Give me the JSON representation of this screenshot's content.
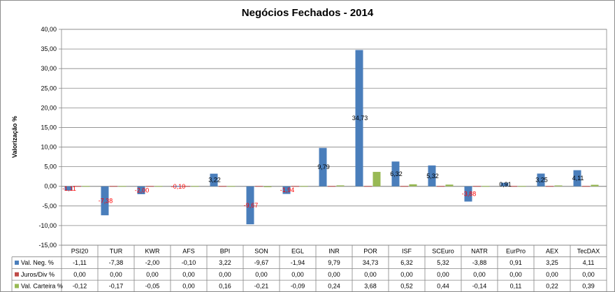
{
  "chart_data": {
    "type": "bar",
    "title": "Negócios Fechados - 2014",
    "ylabel": "Valorização %",
    "xlabel": "",
    "ylim": [
      -15,
      40
    ],
    "yticks": [
      "40,00",
      "35,00",
      "30,00",
      "25,00",
      "20,00",
      "15,00",
      "10,00",
      "5,00",
      "0,00",
      "-5,00",
      "-10,00",
      "-15,00"
    ],
    "ytick_values": [
      40,
      35,
      30,
      25,
      20,
      15,
      10,
      5,
      0,
      -5,
      -10,
      -15
    ],
    "grid": true,
    "legend_placement": "table-left",
    "categories": [
      "PSI20",
      "TUR",
      "KWR",
      "AFS",
      "BPI",
      "SON",
      "EGL",
      "INR",
      "POR",
      "ISF",
      "SCEuro",
      "NATR",
      "EurPro",
      "AEX",
      "TecDAX"
    ],
    "series": [
      {
        "name": "Val. Neg. %",
        "color": "#4a7ebb",
        "values": [
          -1.11,
          -7.38,
          -2.0,
          -0.1,
          3.22,
          -9.67,
          -1.94,
          9.79,
          34.73,
          6.32,
          5.32,
          -3.88,
          0.91,
          3.25,
          4.11
        ],
        "display": [
          "-1,11",
          "-7,38",
          "-2,00",
          "-0,10",
          "3,22",
          "-9,67",
          "-1,94",
          "9,79",
          "34,73",
          "6,32",
          "5,32",
          "-3,88",
          "0,91",
          "3,25",
          "4,11"
        ]
      },
      {
        "name": "Juros/Div %",
        "color": "#be4b48",
        "values": [
          0,
          0,
          0,
          0,
          0,
          0,
          0,
          0,
          0,
          0,
          0,
          0,
          0,
          0,
          0
        ],
        "display": [
          "0,00",
          "0,00",
          "0,00",
          "0,00",
          "0,00",
          "0,00",
          "0,00",
          "0,00",
          "0,00",
          "0,00",
          "0,00",
          "0,00",
          "0,00",
          "0,00",
          "0,00"
        ]
      },
      {
        "name": "Val. Carteira %",
        "color": "#98b954",
        "values": [
          -0.12,
          -0.17,
          -0.05,
          0.0,
          0.16,
          -0.21,
          -0.09,
          0.24,
          3.68,
          0.52,
          0.44,
          -0.14,
          0.11,
          0.22,
          0.39
        ],
        "display": [
          "-0,12",
          "-0,17",
          "-0,05",
          "0,00",
          "0,16",
          "-0,21",
          "-0,09",
          "0,24",
          "3,68",
          "0,52",
          "0,44",
          "-0,14",
          "0,11",
          "0,22",
          "0,39"
        ]
      }
    ],
    "data_label_colors": {
      "positive": "#000000",
      "negative": "#ff0000"
    }
  }
}
